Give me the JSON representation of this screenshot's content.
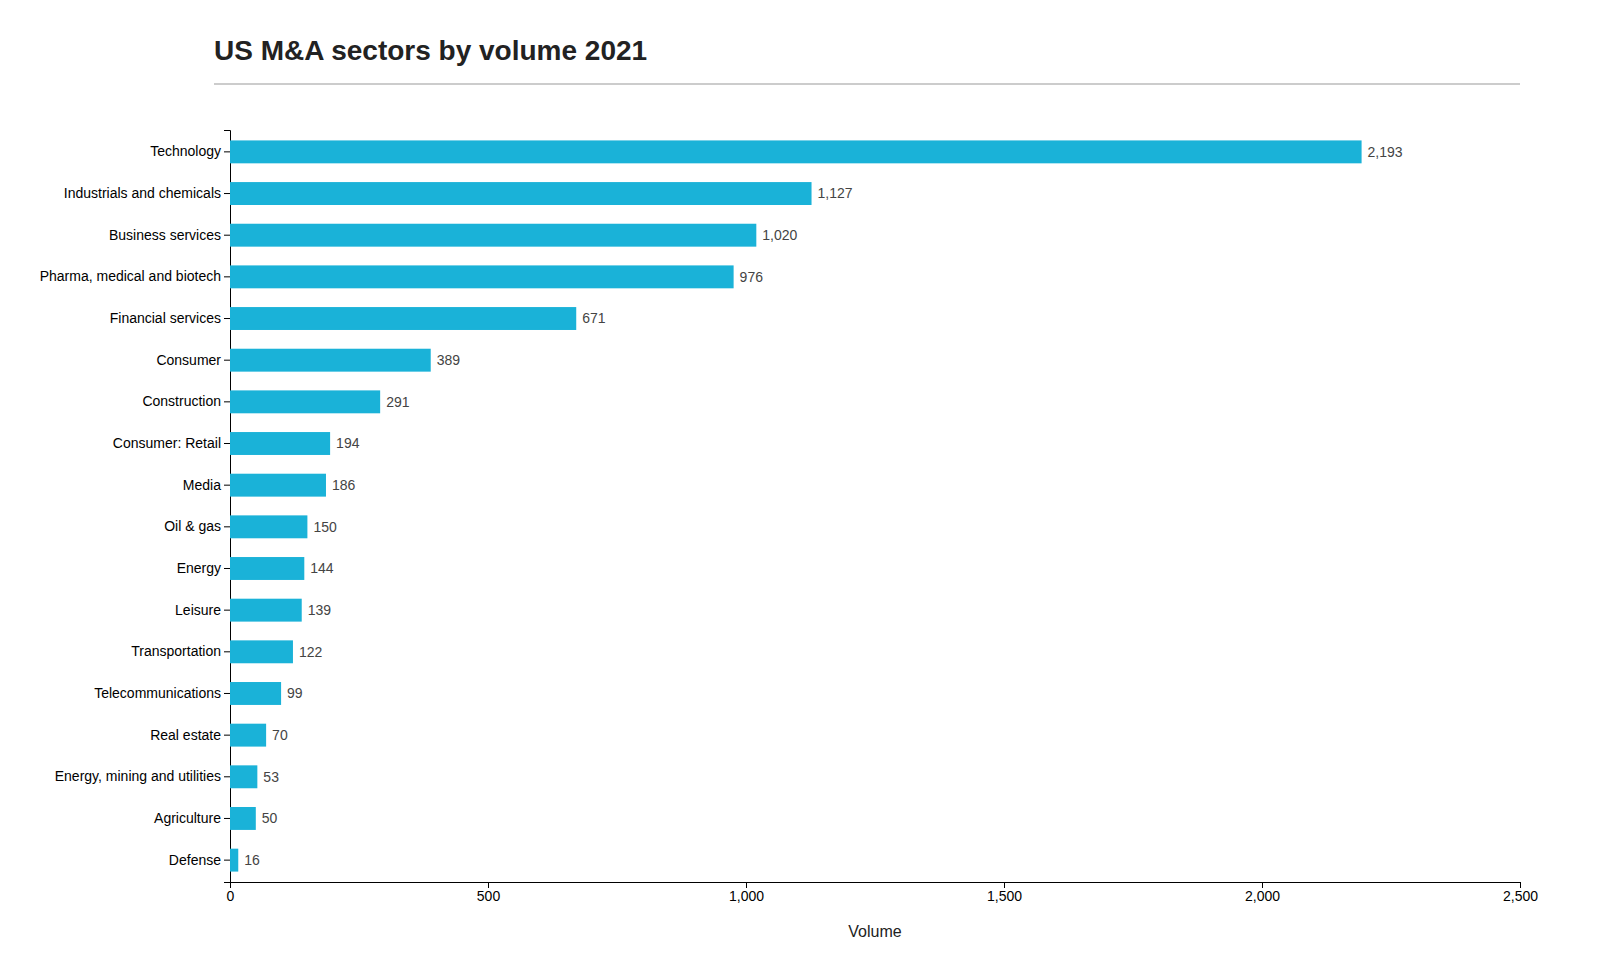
{
  "chart_data": {
    "type": "bar",
    "orientation": "horizontal",
    "title": "US M&A sectors by volume 2021",
    "xlabel": "Volume",
    "categories": [
      "Technology",
      "Industrials and chemicals",
      "Business services",
      "Pharma, medical and biotech",
      "Financial services",
      "Consumer",
      "Construction",
      "Consumer: Retail",
      "Media",
      "Oil & gas",
      "Energy",
      "Leisure",
      "Transportation",
      "Telecommunications",
      "Real estate",
      "Energy, mining and utilities",
      "Agriculture",
      "Defense"
    ],
    "values": [
      2193,
      1127,
      1020,
      976,
      671,
      389,
      291,
      194,
      186,
      150,
      144,
      139,
      122,
      99,
      70,
      53,
      50,
      16
    ],
    "value_labels": [
      "2,193",
      "1,127",
      "1,020",
      "976",
      "671",
      "389",
      "291",
      "194",
      "186",
      "150",
      "144",
      "139",
      "122",
      "99",
      "70",
      "53",
      "50",
      "16"
    ],
    "data_labels": true,
    "color": "#1ab2d8",
    "xlim": [
      0,
      2500
    ],
    "xticks": [
      0,
      500,
      {
        "value": 1000,
        "label": "1,000"
      },
      {
        "value": 1500,
        "label": "1,500"
      },
      {
        "value": 2000,
        "label": "2,000"
      },
      {
        "value": 2500,
        "label": "2,500"
      }
    ],
    "grid": false
  }
}
